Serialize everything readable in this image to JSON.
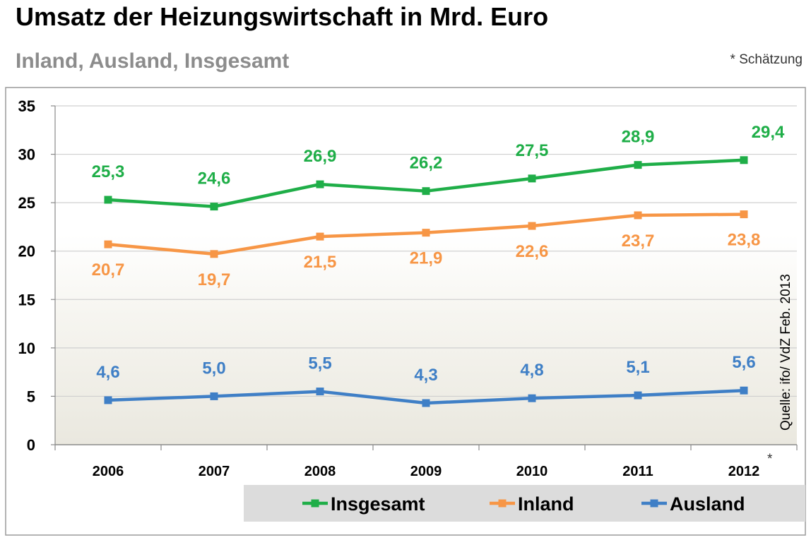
{
  "header": {
    "title": "Umsatz der Heizungswirtschaft in Mrd. Euro",
    "subtitle": "Inland, Ausland, Insgesamt",
    "note": "* Schätzung"
  },
  "source": "Quelle: ifo/ VdZ Feb. 2013",
  "chart_data": {
    "type": "line",
    "title": "Umsatz der Heizungswirtschaft in Mrd. Euro",
    "subtitle": "Inland, Ausland, Insgesamt",
    "categories": [
      "2006",
      "2007",
      "2008",
      "2009",
      "2010",
      "2011",
      "2012"
    ],
    "category_marker": "*",
    "yticks": [
      "0",
      "5",
      "10",
      "15",
      "20",
      "25",
      "30",
      "35"
    ],
    "ylim": [
      0,
      35
    ],
    "grid": true,
    "legend_position": "bottom",
    "series": [
      {
        "name": "Insgesamt",
        "color": "#1fae48",
        "values": [
          25.3,
          24.6,
          26.9,
          26.2,
          27.5,
          28.9,
          29.4
        ],
        "labels": [
          "25,3",
          "24,6",
          "26,9",
          "26,2",
          "27,5",
          "28,9",
          "29,4"
        ],
        "label_position": "above"
      },
      {
        "name": "Inland",
        "color": "#f79646",
        "values": [
          20.7,
          19.7,
          21.5,
          21.9,
          22.6,
          23.7,
          23.8
        ],
        "labels": [
          "20,7",
          "19,7",
          "21,5",
          "21,9",
          "22,6",
          "23,7",
          "23,8"
        ],
        "label_position": "below"
      },
      {
        "name": "Ausland",
        "color": "#3f7fc6",
        "values": [
          4.6,
          5.0,
          5.5,
          4.3,
          4.8,
          5.1,
          5.6
        ],
        "labels": [
          "4,6",
          "5,0",
          "5,5",
          "4,3",
          "4,8",
          "5,1",
          "5,6"
        ],
        "label_position": "above"
      }
    ]
  }
}
